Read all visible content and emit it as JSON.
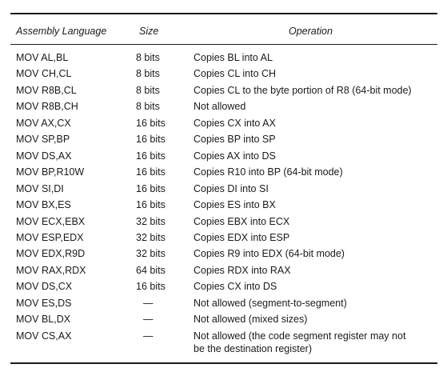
{
  "table": {
    "headers": {
      "assembly": "Assembly Language",
      "size": "Size",
      "operation": "Operation"
    },
    "rows": [
      {
        "asm": "MOV AL,BL",
        "size": "8 bits",
        "op": "Copies BL into AL"
      },
      {
        "asm": "MOV CH,CL",
        "size": "8 bits",
        "op": "Copies CL into CH"
      },
      {
        "asm": "MOV R8B,CL",
        "size": "8 bits",
        "op": "Copies CL to the byte portion of R8 (64-bit mode)"
      },
      {
        "asm": "MOV R8B,CH",
        "size": "8 bits",
        "op": "Not allowed"
      },
      {
        "asm": "MOV AX,CX",
        "size": "16 bits",
        "op": "Copies CX into AX"
      },
      {
        "asm": "MOV SP,BP",
        "size": "16 bits",
        "op": "Copies BP into SP"
      },
      {
        "asm": "MOV DS,AX",
        "size": "16 bits",
        "op": "Copies AX into DS"
      },
      {
        "asm": "MOV BP,R10W",
        "size": "16 bits",
        "op": "Copies R10 into BP (64-bit mode)"
      },
      {
        "asm": "MOV SI,DI",
        "size": "16 bits",
        "op": "Copies DI into SI"
      },
      {
        "asm": "MOV BX,ES",
        "size": "16 bits",
        "op": "Copies ES into BX"
      },
      {
        "asm": "MOV ECX,EBX",
        "size": "32 bits",
        "op": "Copies EBX into ECX"
      },
      {
        "asm": "MOV ESP,EDX",
        "size": "32 bits",
        "op": "Copies EDX into ESP"
      },
      {
        "asm": "MOV EDX,R9D",
        "size": "32 bits",
        "op": "Copies R9 into EDX (64-bit mode)"
      },
      {
        "asm": "MOV RAX,RDX",
        "size": "64 bits",
        "op": "Copies RDX into RAX"
      },
      {
        "asm": "MOV DS,CX",
        "size": "16 bits",
        "op": "Copies CX into DS"
      },
      {
        "asm": "MOV ES,DS",
        "size": "—",
        "op": "Not allowed (segment-to-segment)"
      },
      {
        "asm": "MOV BL,DX",
        "size": "—",
        "op": "Not allowed (mixed sizes)"
      },
      {
        "asm": "MOV CS,AX",
        "size": "—",
        "op": "Not allowed (the code segment register may not\nbe the destination register)"
      }
    ]
  }
}
